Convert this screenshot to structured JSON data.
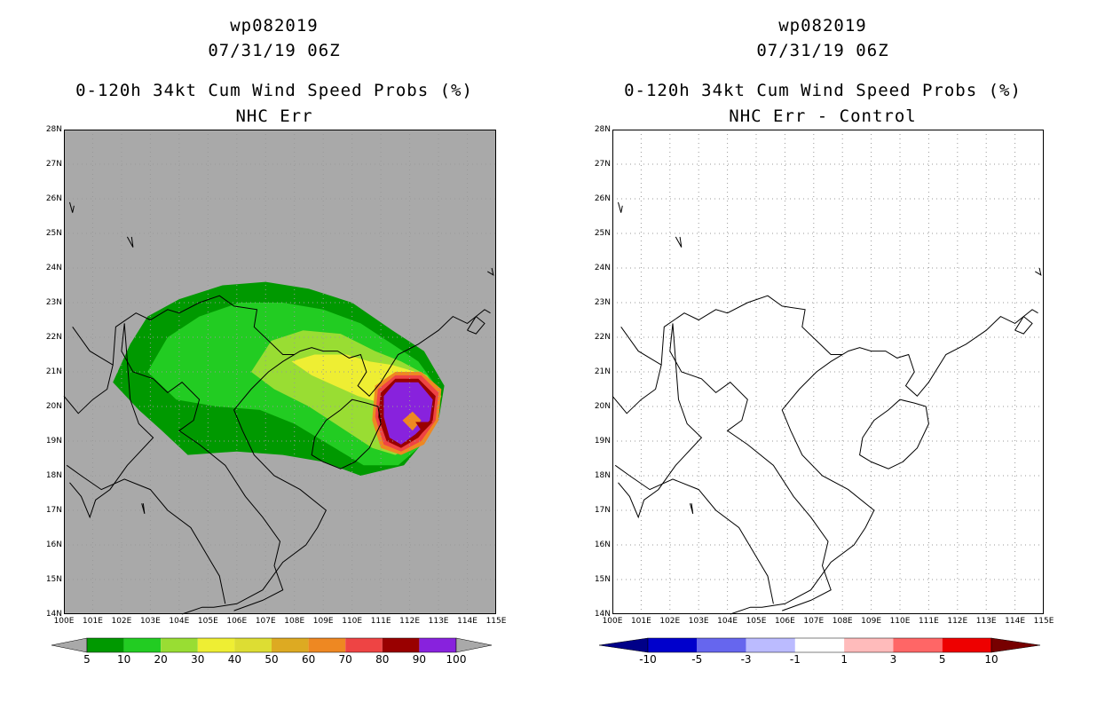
{
  "panels": [
    {
      "storm_id": "wp082019",
      "datetime": "07/31/19 06Z",
      "product_title": "0-120h 34kt Cum Wind Speed Probs (%)",
      "subtitle": "NHC Err",
      "background_color": "#a9a9a9",
      "colorbar": {
        "colors": [
          "#009900",
          "#22cc22",
          "#99dd33",
          "#eeee33",
          "#dddd33",
          "#ddaa22",
          "#ee8822",
          "#ee4444",
          "#990000",
          "#8822dd"
        ],
        "under_color": "#a9a9a9",
        "over_color": "#a9a9a9",
        "labels": [
          "5",
          "10",
          "20",
          "30",
          "40",
          "50",
          "60",
          "70",
          "80",
          "90",
          "100"
        ]
      }
    },
    {
      "storm_id": "wp082019",
      "datetime": "07/31/19 06Z",
      "product_title": "0-120h 34kt Cum Wind Speed Probs (%)",
      "subtitle": "NHC Err - Control",
      "background_color": "#ffffff",
      "colorbar": {
        "colors": [
          "#0000cc",
          "#6666ee",
          "#bbbbff",
          "#ffffff",
          "#ffbbbb",
          "#ff6666",
          "#ee0000"
        ],
        "under_color": "#000088",
        "over_color": "#770000",
        "labels": [
          "-10",
          "-5",
          "-3",
          "-1",
          "1",
          "3",
          "5",
          "10"
        ]
      }
    }
  ],
  "map": {
    "lat_labels": [
      "28N",
      "27N",
      "26N",
      "25N",
      "24N",
      "23N",
      "22N",
      "21N",
      "20N",
      "19N",
      "18N",
      "17N",
      "16N",
      "15N",
      "14N"
    ],
    "lon_labels": [
      "100E",
      "101E",
      "102E",
      "103E",
      "104E",
      "105E",
      "106E",
      "107E",
      "108E",
      "109E",
      "110E",
      "111E",
      "112E",
      "113E",
      "114E",
      "115E"
    ],
    "lat_range": [
      14,
      28
    ],
    "lon_range": [
      100,
      115
    ],
    "grid": "dotted"
  }
}
